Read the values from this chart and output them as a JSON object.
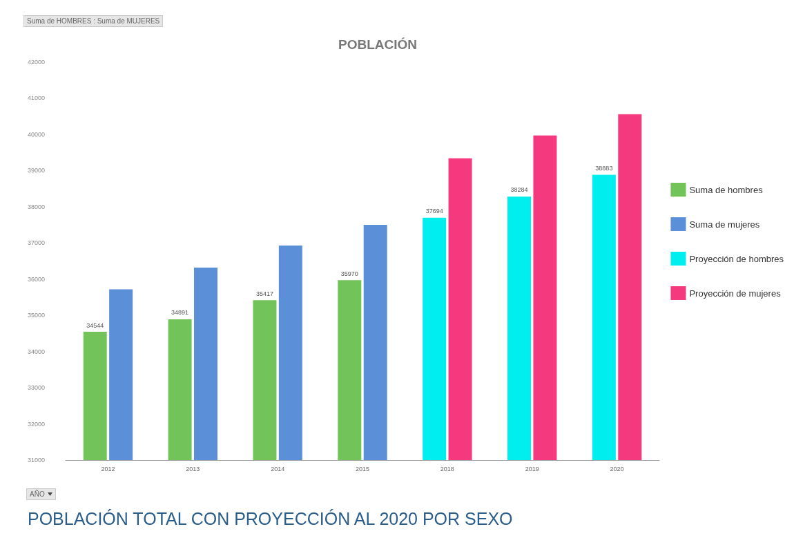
{
  "chart_data": {
    "type": "bar",
    "title": "POBLACIÓN",
    "categories": [
      "2012",
      "2013",
      "2014",
      "2015",
      "2018",
      "2019",
      "2020"
    ],
    "series": [
      {
        "name": "Suma de hombres",
        "color": "#72c35a",
        "values": [
          34544,
          34891,
          35417,
          35970,
          null,
          null,
          null
        ],
        "value_labels": [
          "34544",
          "34891",
          "35417",
          "35970",
          null,
          null,
          null
        ]
      },
      {
        "name": "Suma de mujeres",
        "color": "#5b8fd8",
        "values": [
          35720,
          36320,
          36930,
          37500,
          null,
          null,
          null
        ]
      },
      {
        "name": "Proyección de hombres",
        "color": "#00eeee",
        "values": [
          null,
          null,
          null,
          null,
          37694,
          38284,
          38883
        ],
        "value_labels": [
          null,
          null,
          null,
          null,
          "37694",
          "38284",
          "38883"
        ]
      },
      {
        "name": "Proyección de mujeres",
        "color": "#f5397f",
        "values": [
          null,
          null,
          null,
          null,
          39340,
          39970,
          40560
        ]
      }
    ],
    "ylim": [
      31000,
      42000
    ],
    "yticks": [
      31000,
      32000,
      33000,
      34000,
      35000,
      36000,
      37000,
      38000,
      39000,
      40000,
      41000,
      42000
    ],
    "grid": false,
    "legend": "right",
    "annotations": [
      "Suma de HOMBRES : Suma de MUJERES",
      "AÑO",
      "POBLACIÓN TOTAL CON PROYECCIÓN AL 2020 POR SEXO"
    ]
  }
}
